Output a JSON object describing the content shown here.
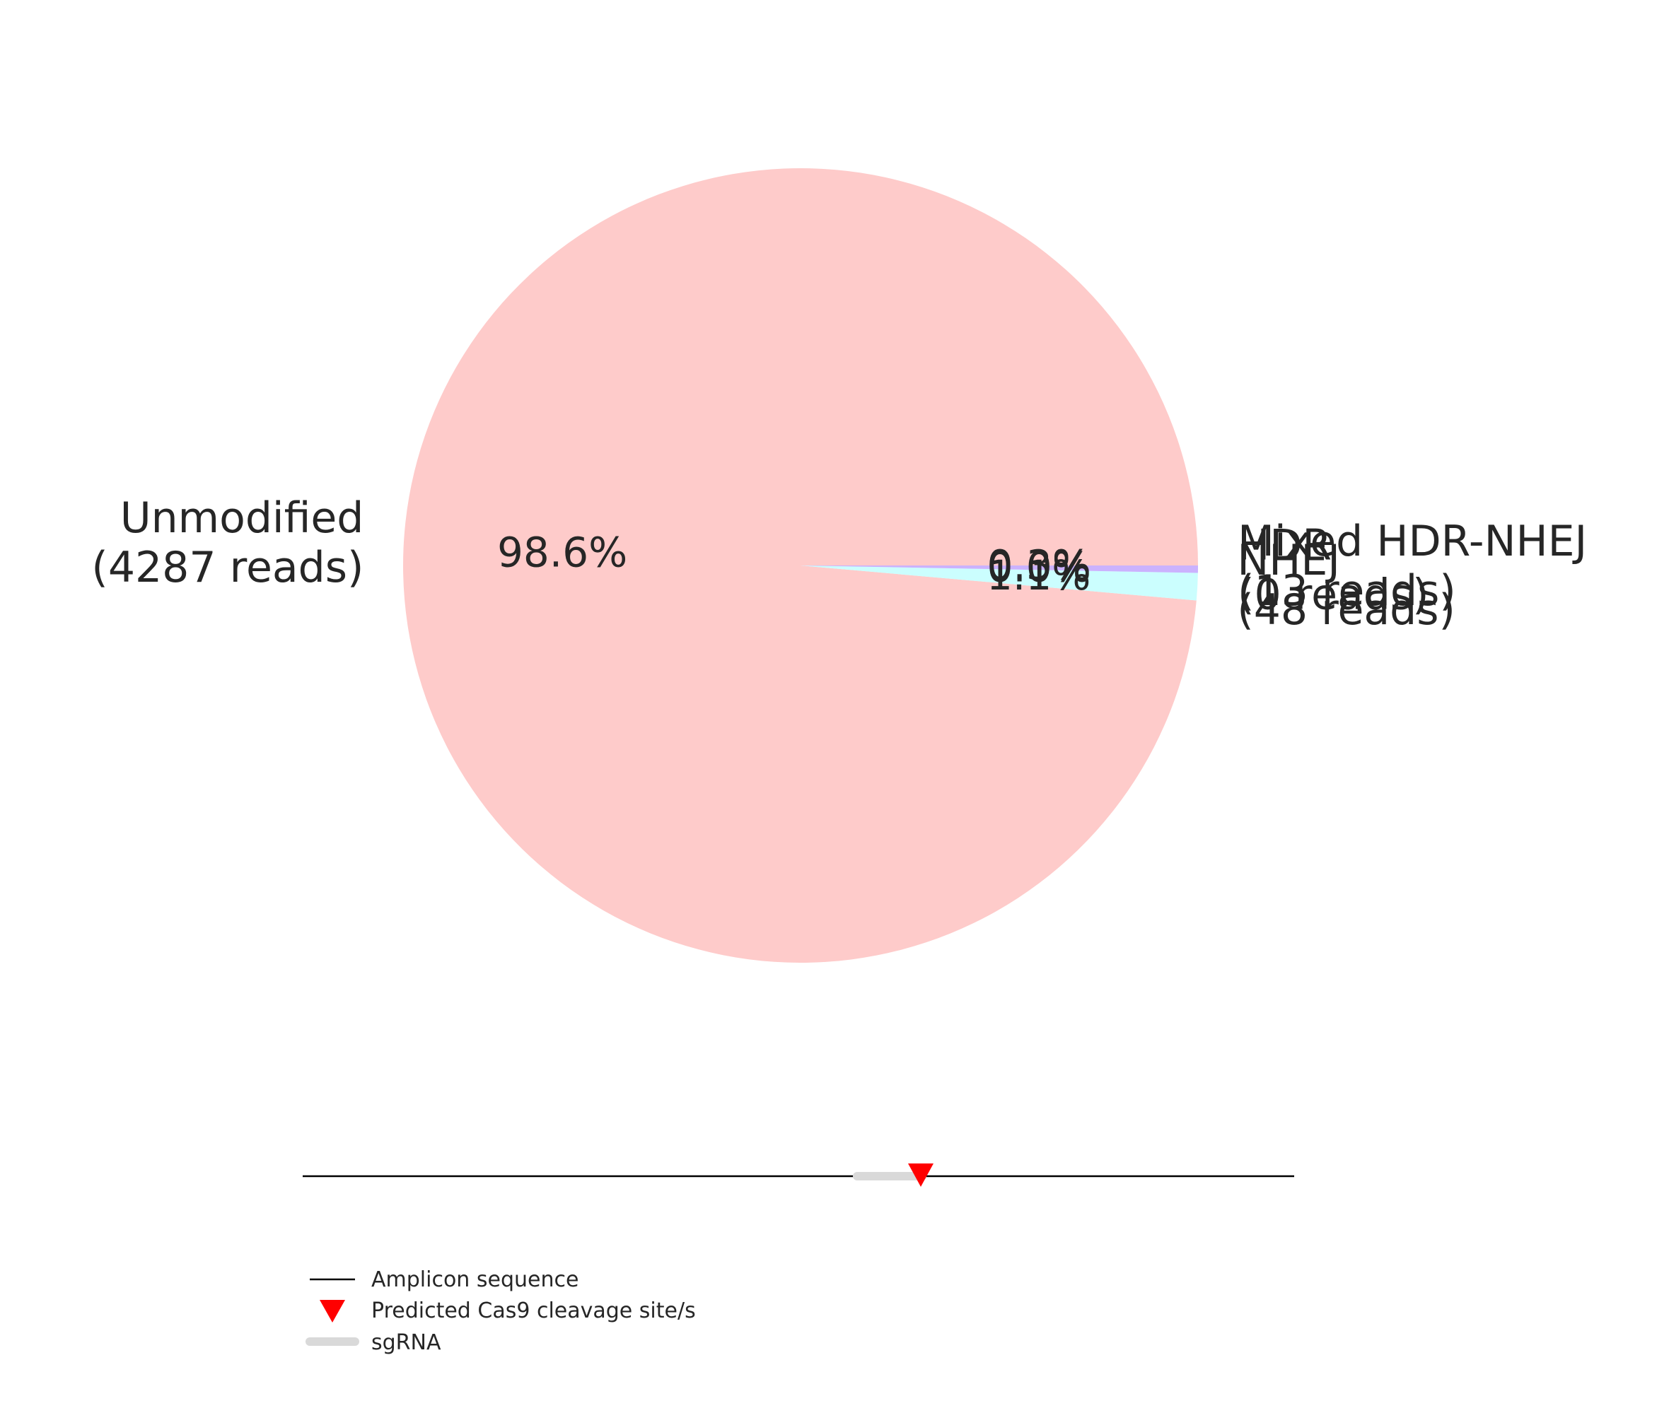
{
  "chart_data": [
    {
      "type": "pie",
      "slices": [
        {
          "category": "Unmodified",
          "reads_text": "(4287 reads)",
          "percent_text": "98.6%",
          "value": 4287,
          "color": "#fecbca"
        },
        {
          "category": "NHEJ",
          "reads_text": "(48 reads)",
          "percent_text": "1.1%",
          "value": 48,
          "color": "#cbfefe"
        },
        {
          "category": "HDR",
          "reads_text": "(0 reads)",
          "percent_text": "0.0%",
          "value": 0,
          "color": "#cbcbfe"
        },
        {
          "category": "Mixed HDR-NHEJ",
          "reads_text": "(13 reads)",
          "percent_text": "0.3%",
          "value": 13,
          "color": "#cbb2fe"
        }
      ]
    },
    {
      "type": "diagram",
      "legend": [
        {
          "label": "Amplicon sequence",
          "marker": "line",
          "color": "#000000"
        },
        {
          "label": "Predicted Cas9 cleavage site/s",
          "marker": "triangle-down",
          "color": "#ff0000"
        },
        {
          "label": "sgRNA",
          "marker": "thick-line",
          "color": "#d9d9d9"
        }
      ]
    }
  ]
}
